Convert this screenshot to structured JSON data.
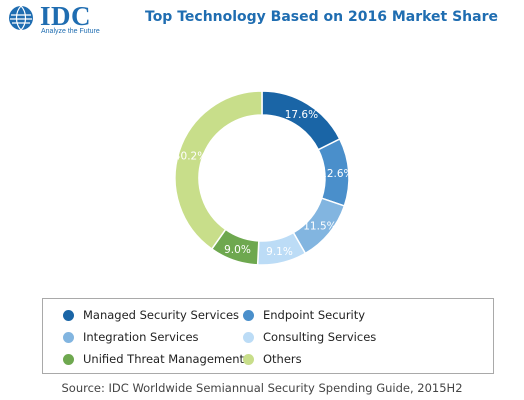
{
  "logo": {
    "name": "IDC",
    "tagline": "Analyze the Future"
  },
  "chart_data": {
    "type": "pie",
    "title": "Top Technology Based on 2016 Market Share",
    "donut": true,
    "slices": [
      {
        "label": "Managed Security Services",
        "value": 17.6,
        "display": "17.6%",
        "color": "#1a65a6"
      },
      {
        "label": "Endpoint Security",
        "value": 12.6,
        "display": "12.6%",
        "color": "#4a8fcb"
      },
      {
        "label": "Integration Services",
        "value": 11.5,
        "display": "11.5%",
        "color": "#82b5e0"
      },
      {
        "label": "Consulting Services",
        "value": 9.1,
        "display": "9.1%",
        "color": "#bcdcf6"
      },
      {
        "label": "Unified Threat Management",
        "value": 9.0,
        "display": "9.0%",
        "color": "#6ea84f"
      },
      {
        "label": "Others",
        "value": 40.2,
        "display": "40.2%",
        "color": "#c8de8a"
      }
    ],
    "legend_placement": "bottom"
  },
  "source": "Source: IDC Worldwide Semiannual Security Spending Guide, 2015H2"
}
